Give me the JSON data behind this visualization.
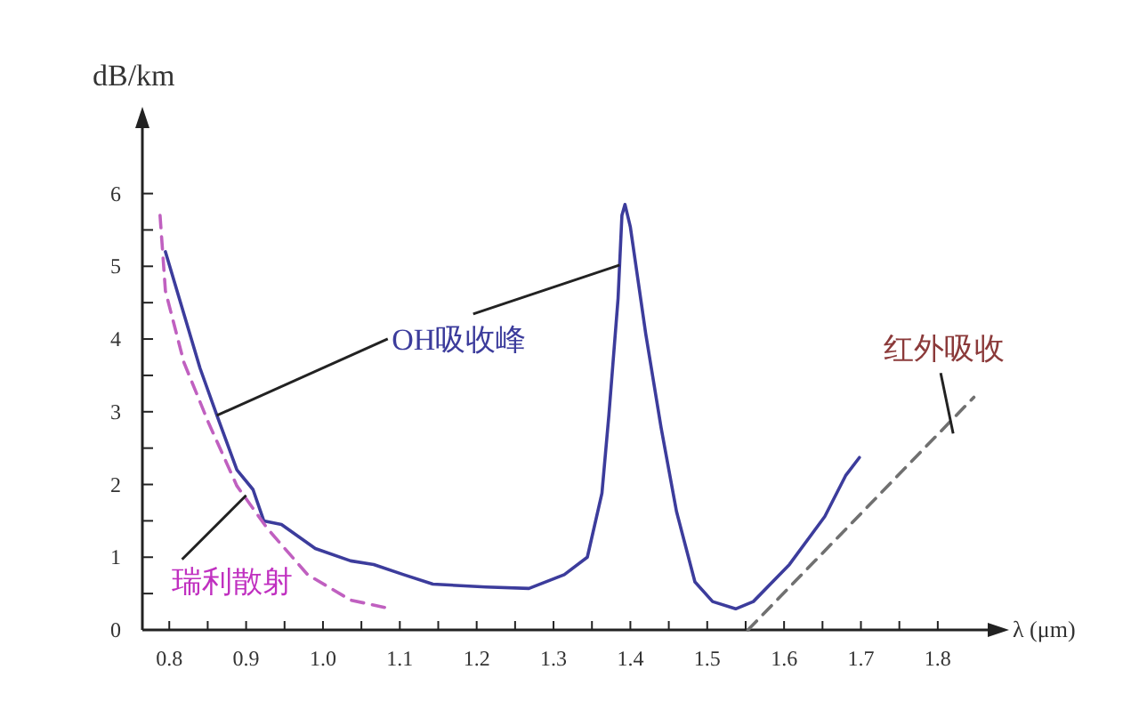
{
  "chart_data": {
    "type": "line",
    "xlabel": "λ (μm)",
    "ylabel": "dB/km",
    "xlim": [
      0.765,
      1.865
    ],
    "ylim": [
      0,
      6.9
    ],
    "xticks": [
      0.8,
      {
        "value": 0.85,
        "label": null
      },
      0.9,
      {
        "value": 0.95,
        "label": null
      },
      {
        "value": 1,
        "label": "1.0"
      },
      {
        "value": 1.05,
        "label": null
      },
      1.1,
      {
        "value": 1.15,
        "label": null
      },
      1.2,
      {
        "value": 1.25,
        "label": null
      },
      1.3,
      {
        "value": 1.35,
        "label": null
      },
      1.4,
      {
        "value": 1.45,
        "label": null
      },
      1.5,
      {
        "value": 1.55,
        "label": null
      },
      1.6,
      {
        "value": 1.65,
        "label": null
      },
      1.7,
      {
        "value": 1.75,
        "label": null
      },
      1.8
    ],
    "yticks": [
      0,
      {
        "value": 0.5,
        "label": null
      },
      1,
      {
        "value": 1.5,
        "label": null
      },
      2,
      {
        "value": 2.5,
        "label": null
      },
      3,
      {
        "value": 3.5,
        "label": null
      },
      4,
      {
        "value": 4.5,
        "label": null
      },
      5,
      {
        "value": 5.5,
        "label": null
      },
      6
    ],
    "grid": false,
    "marker": "none",
    "series": [
      {
        "color": "#3c3c9c",
        "line_style": "solid",
        "x": [
          0.795,
          0.84,
          0.862,
          0.888,
          0.909,
          0.923,
          0.946,
          0.99,
          1.036,
          1.066,
          1.105,
          1.143,
          1.212,
          1.268,
          1.314,
          1.344,
          1.363,
          1.372,
          1.384,
          1.389,
          1.393,
          1.4,
          1.42,
          1.44,
          1.46,
          1.484,
          1.507,
          1.537,
          1.56,
          1.607,
          1.653,
          1.68,
          1.698
        ],
        "values": [
          5.2,
          3.6,
          2.95,
          2.2,
          1.93,
          1.5,
          1.45,
          1.12,
          0.95,
          0.9,
          0.76,
          0.63,
          0.59,
          0.57,
          0.76,
          1.0,
          1.88,
          2.95,
          4.56,
          5.7,
          5.85,
          5.54,
          4.07,
          2.78,
          1.63,
          0.66,
          0.39,
          0.29,
          0.39,
          0.9,
          1.56,
          2.12,
          2.37
        ]
      },
      {
        "color": "#c060c0",
        "line_style": "dashed",
        "x": [
          0.788,
          0.795,
          0.819,
          0.851,
          0.888,
          0.928,
          0.98,
          1.036,
          1.089
        ],
        "values": [
          5.7,
          4.66,
          3.68,
          2.85,
          1.98,
          1.39,
          0.76,
          0.41,
          0.29
        ]
      },
      {
        "color": "#707070",
        "line_style": "dashed",
        "x": [
          1.553,
          1.847
        ],
        "values": [
          0,
          3.2
        ]
      }
    ],
    "annotations": [
      {
        "text": "OH吸收峰",
        "x": 0.862,
        "y": 2.95
      },
      {
        "text": "瑞利散射",
        "x": 0.9,
        "y": 1.85
      },
      {
        "text": "红外吸收",
        "x": 1.82,
        "y": 2.7
      }
    ]
  }
}
